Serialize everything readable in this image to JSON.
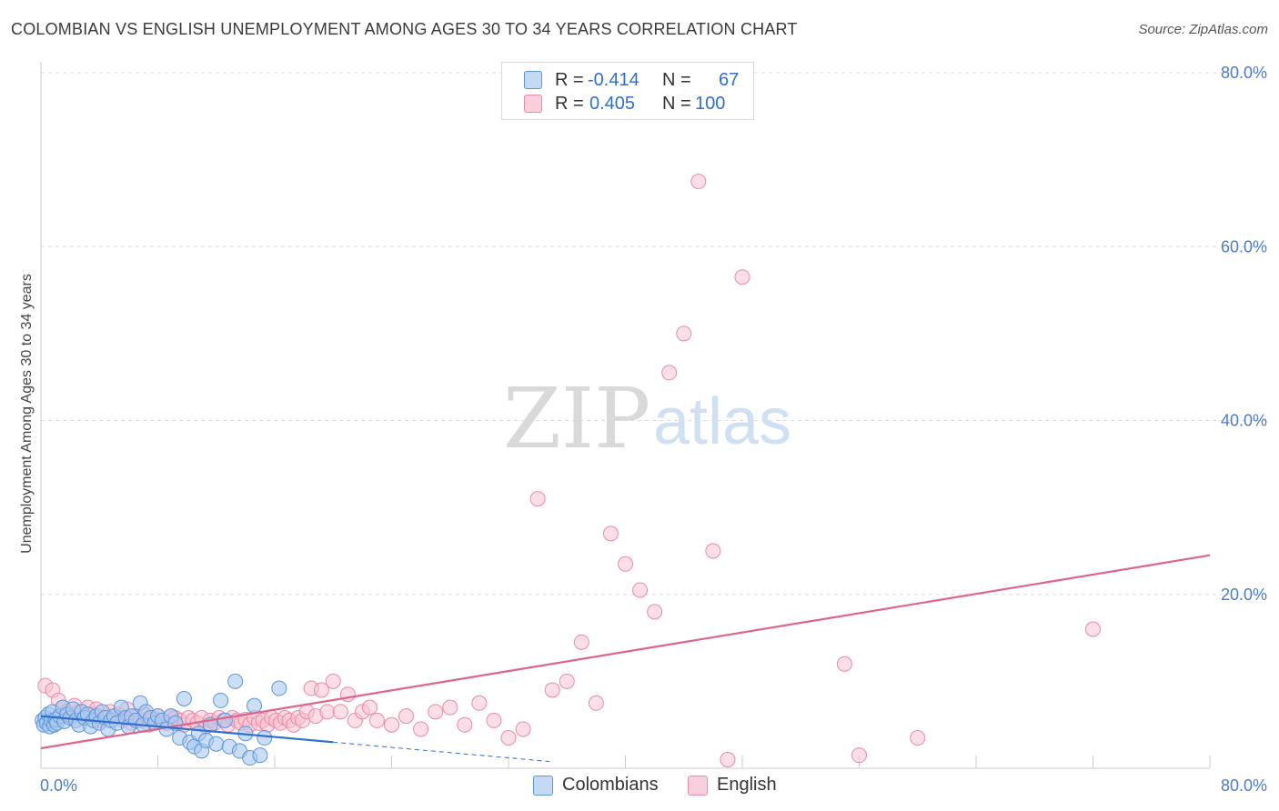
{
  "header": {
    "title": "COLOMBIAN VS ENGLISH UNEMPLOYMENT AMONG AGES 30 TO 34 YEARS CORRELATION CHART",
    "source": "Source: ZipAtlas.com"
  },
  "watermark": {
    "part1": "ZIP",
    "part2": "atlas"
  },
  "legend": {
    "colombians": {
      "r_label": "R =",
      "r_value": "-0.414",
      "n_label": "N =",
      "n_value": "67"
    },
    "english": {
      "r_label": "R =",
      "r_value": "0.405",
      "n_label": "N =",
      "n_value": "100"
    }
  },
  "bottom_legend": {
    "colombians": "Colombians",
    "english": "English"
  },
  "colors": {
    "colombians_fill": "#a9c8ef",
    "colombians_stroke": "#5b95db",
    "colombians_line": "#2f6fcf",
    "english_fill": "#f7c3d2",
    "english_stroke": "#e98aa8",
    "english_line": "#e0638c",
    "tick": "#4a7cc9",
    "grid": "#dddddd"
  },
  "chart_data": {
    "type": "scatter",
    "title": "COLOMBIAN VS ENGLISH UNEMPLOYMENT AMONG AGES 30 TO 34 YEARS CORRELATION CHART",
    "xlabel": "",
    "ylabel": "Unemployment Among Ages 30 to 34 years",
    "xlim": [
      0,
      80
    ],
    "ylim": [
      0,
      80
    ],
    "x_tick_labels": [
      {
        "value": 0,
        "label": "0.0%"
      },
      {
        "value": 80,
        "label": "80.0%"
      }
    ],
    "y_tick_labels": [
      {
        "value": 20,
        "label": "20.0%"
      },
      {
        "value": 40,
        "label": "40.0%"
      },
      {
        "value": 60,
        "label": "60.0%"
      },
      {
        "value": 80,
        "label": "80.0%"
      }
    ],
    "grid": true,
    "legend_position": "top-center",
    "series": [
      {
        "name": "Colombians",
        "r": -0.414,
        "n": 67,
        "trend": {
          "x0": 0,
          "y0": 6.0,
          "x1": 20.0,
          "y1": 3.0,
          "dash_to_x": 35.0
        },
        "points": [
          [
            0.1,
            5.5
          ],
          [
            0.2,
            5.0
          ],
          [
            0.3,
            5.8
          ],
          [
            0.4,
            5.2
          ],
          [
            0.5,
            6.2
          ],
          [
            0.6,
            4.8
          ],
          [
            0.7,
            5.5
          ],
          [
            0.8,
            6.5
          ],
          [
            0.9,
            5.0
          ],
          [
            1.0,
            5.6
          ],
          [
            1.1,
            5.2
          ],
          [
            1.3,
            6.0
          ],
          [
            1.5,
            7.0
          ],
          [
            1.6,
            5.4
          ],
          [
            1.8,
            6.2
          ],
          [
            2.0,
            5.8
          ],
          [
            2.2,
            6.8
          ],
          [
            2.4,
            5.5
          ],
          [
            2.6,
            5.0
          ],
          [
            2.8,
            6.5
          ],
          [
            3.0,
            5.8
          ],
          [
            3.2,
            6.2
          ],
          [
            3.4,
            4.8
          ],
          [
            3.6,
            5.5
          ],
          [
            3.8,
            6.0
          ],
          [
            4.0,
            5.2
          ],
          [
            4.2,
            6.5
          ],
          [
            4.4,
            5.8
          ],
          [
            4.6,
            4.5
          ],
          [
            4.8,
            5.5
          ],
          [
            5.0,
            6.0
          ],
          [
            5.2,
            5.2
          ],
          [
            5.5,
            7.0
          ],
          [
            5.8,
            5.8
          ],
          [
            6.0,
            4.8
          ],
          [
            6.2,
            6.0
          ],
          [
            6.5,
            5.5
          ],
          [
            6.8,
            7.5
          ],
          [
            7.0,
            5.0
          ],
          [
            7.2,
            6.5
          ],
          [
            7.5,
            5.8
          ],
          [
            7.8,
            5.2
          ],
          [
            8.0,
            6.0
          ],
          [
            8.3,
            5.5
          ],
          [
            8.6,
            4.5
          ],
          [
            8.9,
            6.0
          ],
          [
            9.2,
            5.2
          ],
          [
            9.5,
            3.5
          ],
          [
            9.8,
            8.0
          ],
          [
            10.2,
            3.0
          ],
          [
            10.5,
            2.5
          ],
          [
            10.8,
            4.0
          ],
          [
            11.0,
            2.0
          ],
          [
            11.3,
            3.2
          ],
          [
            11.6,
            5.0
          ],
          [
            12.0,
            2.8
          ],
          [
            12.3,
            7.8
          ],
          [
            12.6,
            5.5
          ],
          [
            12.9,
            2.5
          ],
          [
            13.3,
            10.0
          ],
          [
            13.6,
            2.0
          ],
          [
            14.0,
            4.0
          ],
          [
            14.3,
            1.2
          ],
          [
            14.6,
            7.2
          ],
          [
            15.0,
            1.5
          ],
          [
            15.3,
            3.5
          ],
          [
            16.3,
            9.2
          ]
        ]
      },
      {
        "name": "English",
        "r": 0.405,
        "n": 100,
        "trend": {
          "x0": 0,
          "y0": 2.3,
          "x1": 80.0,
          "y1": 24.5
        },
        "points": [
          [
            0.3,
            9.5
          ],
          [
            0.8,
            9.0
          ],
          [
            1.2,
            7.8
          ],
          [
            1.5,
            7.0
          ],
          [
            1.8,
            6.5
          ],
          [
            2.0,
            6.0
          ],
          [
            2.3,
            7.2
          ],
          [
            2.6,
            6.5
          ],
          [
            2.9,
            5.8
          ],
          [
            3.2,
            7.0
          ],
          [
            3.5,
            6.2
          ],
          [
            3.8,
            6.8
          ],
          [
            4.1,
            5.5
          ],
          [
            4.4,
            6.0
          ],
          [
            4.7,
            6.5
          ],
          [
            5.0,
            5.8
          ],
          [
            5.3,
            6.2
          ],
          [
            5.6,
            5.5
          ],
          [
            5.9,
            6.8
          ],
          [
            6.2,
            5.2
          ],
          [
            6.5,
            6.0
          ],
          [
            6.8,
            5.5
          ],
          [
            7.1,
            6.2
          ],
          [
            7.4,
            5.0
          ],
          [
            7.7,
            5.8
          ],
          [
            8.0,
            6.0
          ],
          [
            8.3,
            5.5
          ],
          [
            8.6,
            5.2
          ],
          [
            8.9,
            6.0
          ],
          [
            9.2,
            5.8
          ],
          [
            9.5,
            5.5
          ],
          [
            9.8,
            5.0
          ],
          [
            10.1,
            5.8
          ],
          [
            10.4,
            5.5
          ],
          [
            10.7,
            5.2
          ],
          [
            11.0,
            5.8
          ],
          [
            11.3,
            4.8
          ],
          [
            11.6,
            5.5
          ],
          [
            11.9,
            5.2
          ],
          [
            12.2,
            5.8
          ],
          [
            12.5,
            5.5
          ],
          [
            12.8,
            5.0
          ],
          [
            13.1,
            5.8
          ],
          [
            13.4,
            5.5
          ],
          [
            13.7,
            5.2
          ],
          [
            14.0,
            5.6
          ],
          [
            14.3,
            5.0
          ],
          [
            14.6,
            5.8
          ],
          [
            14.9,
            5.2
          ],
          [
            15.2,
            5.5
          ],
          [
            15.5,
            5.0
          ],
          [
            15.8,
            5.8
          ],
          [
            16.1,
            5.5
          ],
          [
            16.4,
            5.2
          ],
          [
            16.7,
            5.8
          ],
          [
            17.0,
            5.5
          ],
          [
            17.3,
            5.0
          ],
          [
            17.6,
            5.8
          ],
          [
            17.9,
            5.5
          ],
          [
            18.2,
            6.5
          ],
          [
            18.5,
            9.2
          ],
          [
            18.8,
            6.0
          ],
          [
            19.2,
            9.0
          ],
          [
            19.6,
            6.5
          ],
          [
            20.0,
            10.0
          ],
          [
            20.5,
            6.5
          ],
          [
            21.0,
            8.5
          ],
          [
            21.5,
            5.5
          ],
          [
            22.0,
            6.5
          ],
          [
            22.5,
            7.0
          ],
          [
            23.0,
            5.5
          ],
          [
            24.0,
            5.0
          ],
          [
            25.0,
            6.0
          ],
          [
            26.0,
            4.5
          ],
          [
            27.0,
            6.5
          ],
          [
            28.0,
            7.0
          ],
          [
            29.0,
            5.0
          ],
          [
            30.0,
            7.5
          ],
          [
            31.0,
            5.5
          ],
          [
            32.0,
            3.5
          ],
          [
            33.0,
            4.5
          ],
          [
            34.0,
            31.0
          ],
          [
            35.0,
            9.0
          ],
          [
            36.0,
            10.0
          ],
          [
            37.0,
            14.5
          ],
          [
            38.0,
            7.5
          ],
          [
            39.0,
            27.0
          ],
          [
            40.0,
            23.5
          ],
          [
            41.0,
            20.5
          ],
          [
            42.0,
            18.0
          ],
          [
            43.0,
            45.5
          ],
          [
            44.0,
            50.0
          ],
          [
            45.0,
            67.5
          ],
          [
            46.0,
            25.0
          ],
          [
            47.0,
            1.0
          ],
          [
            48.0,
            56.5
          ],
          [
            55.0,
            12.0
          ],
          [
            56.0,
            1.5
          ],
          [
            60.0,
            3.5
          ],
          [
            72.0,
            16.0
          ]
        ]
      }
    ]
  }
}
